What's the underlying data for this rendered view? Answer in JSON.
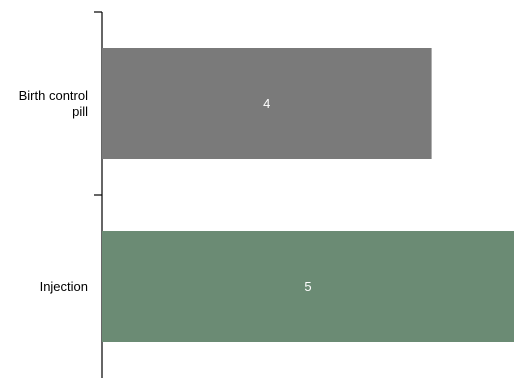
{
  "chart_data": {
    "type": "bar",
    "orientation": "horizontal",
    "categories": [
      "Birth control pill",
      "Injection"
    ],
    "category_label_lines": [
      [
        "Birth control",
        "pill"
      ],
      [
        "Injection"
      ]
    ],
    "values": [
      4,
      5
    ],
    "colors": [
      "#7a7a7a",
      "#6b8b74"
    ],
    "data_labels": [
      "4",
      "5"
    ],
    "xlim": [
      0,
      5
    ],
    "title": "",
    "xlabel": "",
    "ylabel": "",
    "legend": "none",
    "grid": false
  }
}
